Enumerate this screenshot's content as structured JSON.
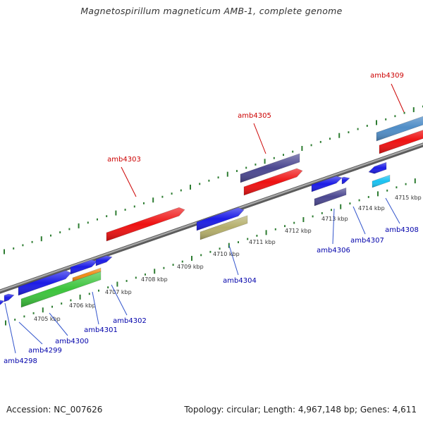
{
  "title": "Magnetospirillum magneticum AMB-1, complete genome",
  "footer": {
    "accession": "Accession: NC_007626",
    "summary": "Topology: circular; Length: 4,967,148 bp; Genes: 4,611"
  },
  "colors": {
    "backbone": "#8a8a8a",
    "tick": "#2e7d32",
    "highlight_label": "#cc0000",
    "gene_label": "#0000aa",
    "leader": "#3355cc",
    "blue": "#1c1ce6",
    "red": "#ee1111",
    "slate": "#4b4790",
    "steelblue": "#4f8dc7",
    "green": "#3cc43c",
    "orange": "#f08a14",
    "khaki": "#b4ae6a",
    "cyan": "#19c2f2"
  },
  "ticks": [
    {
      "label": "4705 kbp"
    },
    {
      "label": "4706 kbp"
    },
    {
      "label": "4707 kbp"
    },
    {
      "label": "4708 kbp"
    },
    {
      "label": "4709 kbp"
    },
    {
      "label": "4710 kbp"
    },
    {
      "label": "4711 kbp"
    },
    {
      "label": "4712 kbp"
    },
    {
      "label": "4713 kbp"
    },
    {
      "label": "4714 kbp"
    },
    {
      "label": "4715 kbp"
    }
  ],
  "genes": [
    {
      "id": "amb4298",
      "color": "blue"
    },
    {
      "id": "amb4299",
      "color": "blue"
    },
    {
      "id": "amb4300",
      "color": "blue"
    },
    {
      "id": "amb4301",
      "color": "blue"
    },
    {
      "id": "amb4302",
      "color": "blue"
    },
    {
      "id": "amb4303",
      "color": "red",
      "highlight": true
    },
    {
      "id": "amb4304",
      "color": "blue"
    },
    {
      "id": "amb4305",
      "color": "red",
      "highlight": true
    },
    {
      "id": "amb4306",
      "color": "blue"
    },
    {
      "id": "amb4307",
      "color": "blue"
    },
    {
      "id": "amb4308",
      "color": "blue"
    },
    {
      "id": "amb4309",
      "color": "red",
      "highlight": true
    }
  ]
}
